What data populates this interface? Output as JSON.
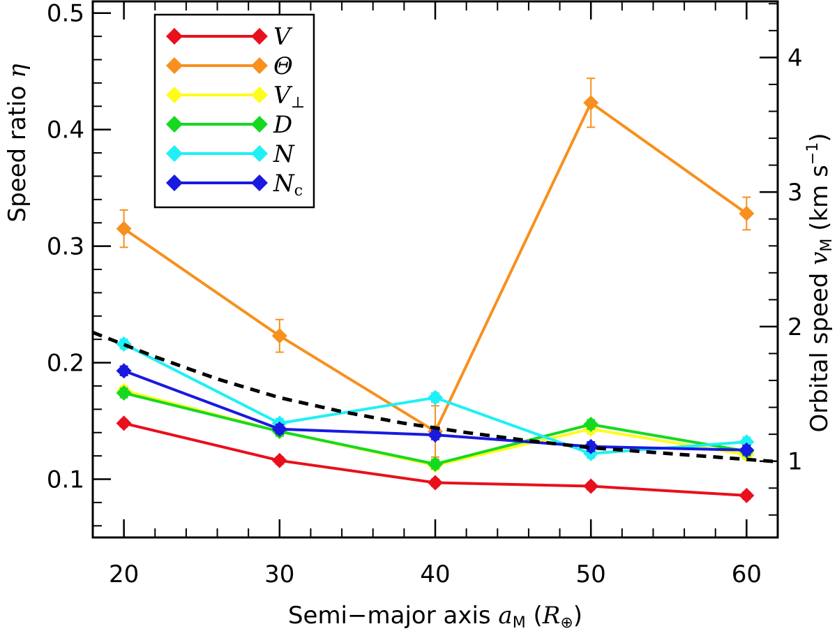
{
  "chart_data": {
    "type": "line",
    "x_axis": {
      "label_parts": [
        "Semi−major axis ",
        "a",
        "M",
        " (",
        "R",
        "⊕",
        ")"
      ],
      "range": [
        18,
        62
      ],
      "ticks": [
        20,
        30,
        40,
        50,
        60
      ],
      "tick_labels": [
        "20",
        "30",
        "40",
        "50",
        "60"
      ],
      "minor_step": 2
    },
    "y_axis": {
      "label_parts": [
        "Speed ratio ",
        "η"
      ],
      "range": [
        0.05,
        0.51
      ],
      "ticks": [
        0.1,
        0.2,
        0.3,
        0.4,
        0.5
      ],
      "tick_labels": [
        "0.1",
        "0.2",
        "0.3",
        "0.4",
        "0.5"
      ],
      "minor_step": 0.02
    },
    "y2_axis": {
      "label_parts": [
        "Orbital speed ",
        "v",
        "M",
        " (km s",
        "−1",
        ")"
      ],
      "range": [
        0.433,
        4.417
      ],
      "ticks": [
        1,
        2,
        3,
        4
      ],
      "tick_labels": [
        "1",
        "2",
        "3",
        "4"
      ],
      "minor_step": 0.2
    },
    "series": [
      {
        "name": "V",
        "subscript": "",
        "color": "#e8101c",
        "x": [
          20,
          30,
          40,
          50,
          60
        ],
        "y": [
          0.148,
          0.116,
          0.097,
          0.094,
          0.086
        ],
        "err": [
          0.003,
          0.003,
          0.003,
          0.003,
          0.003
        ]
      },
      {
        "name": "Θ",
        "subscript": "",
        "color": "#f7901e",
        "x": [
          20,
          30,
          40,
          50,
          60
        ],
        "y": [
          0.315,
          0.223,
          0.141,
          0.423,
          0.328
        ],
        "err": [
          0.016,
          0.014,
          0.022,
          0.021,
          0.014
        ]
      },
      {
        "name": "V",
        "subscript": "⊥",
        "color": "#fffb1e",
        "x": [
          20,
          30,
          40,
          50,
          60
        ],
        "y": [
          0.176,
          0.141,
          0.112,
          0.143,
          0.121
        ],
        "err": [
          0.004,
          0.004,
          0.004,
          0.004,
          0.004
        ]
      },
      {
        "name": "D",
        "subscript": "",
        "color": "#15d921",
        "x": [
          20,
          30,
          40,
          50,
          60
        ],
        "y": [
          0.174,
          0.141,
          0.113,
          0.147,
          0.124
        ],
        "err": [
          0.004,
          0.004,
          0.004,
          0.004,
          0.004
        ]
      },
      {
        "name": "N",
        "subscript": "",
        "color": "#1ef0f5",
        "x": [
          20,
          30,
          40,
          50,
          60
        ],
        "y": [
          0.216,
          0.148,
          0.17,
          0.122,
          0.132
        ],
        "err": [
          0.004,
          0.004,
          0.004,
          0.004,
          0.004
        ]
      },
      {
        "name": "N",
        "subscript": "c",
        "color": "#1919e0",
        "x": [
          20,
          30,
          40,
          50,
          60
        ],
        "y": [
          0.193,
          0.143,
          0.138,
          0.128,
          0.125
        ],
        "err": [
          0.004,
          0.004,
          0.004,
          0.004,
          0.004
        ]
      }
    ],
    "reference_curve": {
      "style": "dashed",
      "color": "#000000",
      "x": [
        18,
        22,
        26,
        30,
        34,
        38,
        42,
        46,
        50,
        54,
        58,
        62
      ],
      "y": [
        0.226,
        0.205,
        0.186,
        0.17,
        0.158,
        0.148,
        0.14,
        0.133,
        0.127,
        0.123,
        0.119,
        0.115
      ]
    },
    "legend": {
      "position": "top-left"
    }
  }
}
